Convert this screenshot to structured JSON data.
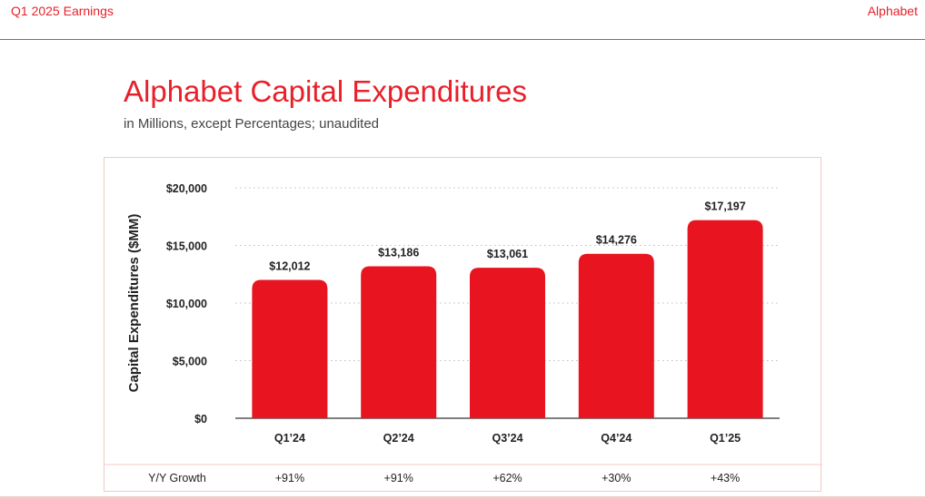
{
  "header": {
    "left_label": "Q1 2025 Earnings",
    "brand": "Alphabet"
  },
  "colors": {
    "accent": "#e8202a",
    "bar": "#e8141f",
    "frame_border": "#f4c9c6"
  },
  "growth_row": {
    "label": "Y/Y Growth",
    "values": [
      "+91%",
      "+91%",
      "+62%",
      "+30%",
      "+43%"
    ]
  },
  "chart_data": {
    "type": "bar",
    "title": "Alphabet Capital Expenditures",
    "subtitle": "in Millions, except Percentages; unaudited",
    "xlabel": "",
    "ylabel": "Capital Expenditures ($MM)",
    "categories": [
      "Q1’24",
      "Q2’24",
      "Q3’24",
      "Q4’24",
      "Q1’25"
    ],
    "values": [
      12012,
      13186,
      13061,
      14276,
      17197
    ],
    "value_labels": [
      "$12,012",
      "$13,186",
      "$13,061",
      "$14,276",
      "$17,197"
    ],
    "ylim": [
      0,
      20000
    ],
    "yticks": [
      0,
      5000,
      10000,
      15000,
      20000
    ],
    "ytick_labels": [
      "$0",
      "$5,000",
      "$10,000",
      "$15,000",
      "$20,000"
    ],
    "grid": "dotted horizontal",
    "legend": "none"
  }
}
